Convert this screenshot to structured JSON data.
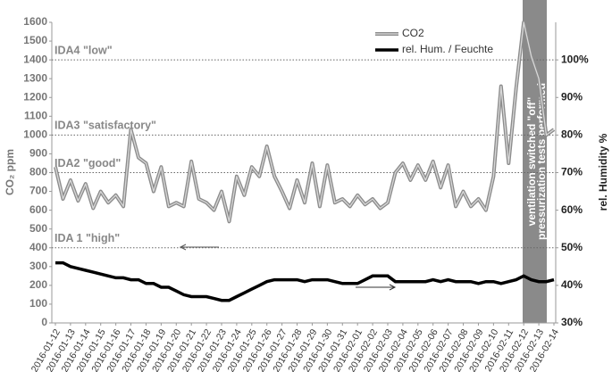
{
  "chart_data": {
    "type": "line",
    "y_label": "CO₂ ppm",
    "y2_label": "rel. Humidity %",
    "categories": [
      "2016-01-12",
      null,
      "2016-01-13",
      null,
      "2016-01-14",
      null,
      "2016-01-15",
      null,
      "2016-01-16",
      null,
      "2016-01-17",
      null,
      "2016-01-18",
      null,
      "2016-01-19",
      null,
      "2016-01-20",
      null,
      "2016-01-21",
      null,
      "2016-01-22",
      null,
      "2016-01-23",
      null,
      "2016-01-24",
      null,
      "2016-01-25",
      null,
      "2016-01-26",
      null,
      "2016-01-27",
      null,
      "2016-01-28",
      null,
      "2016-01-29",
      null,
      "2016-01-30",
      null,
      "2016-01-31",
      null,
      "2016-02-01",
      null,
      "2016-02-02",
      null,
      "2016-02-03",
      null,
      "2016-02-04",
      null,
      "2016-02-05",
      null,
      "2016-02-06",
      null,
      "2016-02-07",
      null,
      "2016-02-08",
      null,
      "2016-02-09",
      null,
      "2016-02-10",
      null,
      "2016-02-11",
      null,
      "2016-02-12",
      null,
      "2016-02-13",
      null,
      "2016-02-14"
    ],
    "series": [
      {
        "name": "CO2",
        "color": "#8c8c8c",
        "values": [
          830,
          660,
          760,
          650,
          740,
          610,
          700,
          640,
          680,
          620,
          1030,
          880,
          850,
          700,
          830,
          620,
          640,
          620,
          860,
          660,
          640,
          600,
          700,
          540,
          780,
          680,
          830,
          780,
          940,
          780,
          700,
          610,
          760,
          640,
          850,
          620,
          840,
          640,
          660,
          620,
          680,
          630,
          660,
          610,
          640,
          800,
          850,
          760,
          840,
          760,
          860,
          720,
          840,
          620,
          700,
          620,
          660,
          600,
          780,
          1260,
          850,
          1250,
          1600,
          1420,
          1300,
          1000,
          1030
        ]
      },
      {
        "name": "rel. Hum. / Feuchte",
        "color": "#000000",
        "axis": "y2",
        "values": [
          46,
          46,
          45,
          44.5,
          44,
          43.5,
          43,
          42.5,
          42,
          42,
          41.5,
          41.5,
          40.5,
          40.5,
          39.5,
          39.5,
          38.5,
          37.5,
          37,
          37,
          37,
          36.5,
          36,
          36,
          37,
          38,
          39,
          40,
          41,
          41.5,
          41.5,
          41.5,
          41.5,
          41,
          41.5,
          41.5,
          41.5,
          41,
          40.5,
          40.5,
          40.5,
          41.5,
          42.5,
          42.5,
          42.5,
          41,
          41,
          41,
          41,
          41,
          41.5,
          41,
          41.5,
          41,
          41,
          41,
          40.5,
          41,
          41,
          40.5,
          41,
          41.5,
          42.5,
          41.5,
          41,
          41,
          41.5
        ]
      }
    ],
    "ylim": [
      0,
      1600
    ],
    "yticks": [
      0,
      100,
      200,
      300,
      400,
      500,
      600,
      700,
      800,
      900,
      1000,
      1100,
      1200,
      1300,
      1400,
      1500,
      1600
    ],
    "y2lim": [
      30,
      110
    ],
    "y2ticks": [
      {
        "value": 30,
        "label": "30%"
      },
      {
        "value": 40,
        "label": "40%"
      },
      {
        "value": 50,
        "label": "50%"
      },
      {
        "value": 60,
        "label": "60%"
      },
      {
        "value": 70,
        "label": "70%"
      },
      {
        "value": 80,
        "label": "80%"
      },
      {
        "value": 90,
        "label": "90%"
      },
      {
        "value": 100,
        "label": "100%"
      }
    ],
    "reference_lines": [
      {
        "value": 1400,
        "label": "IDA4 \"low\""
      },
      {
        "value": 1000,
        "label": "IDA3 \"satisfactory\""
      },
      {
        "value": 800,
        "label": "IDA2 \"good\""
      },
      {
        "value": 400,
        "label": "IDA 1 \"high\""
      }
    ],
    "annotations": [
      "ventilation switched \"off\"",
      "pressurization tests performed"
    ],
    "legend": "upper right"
  }
}
